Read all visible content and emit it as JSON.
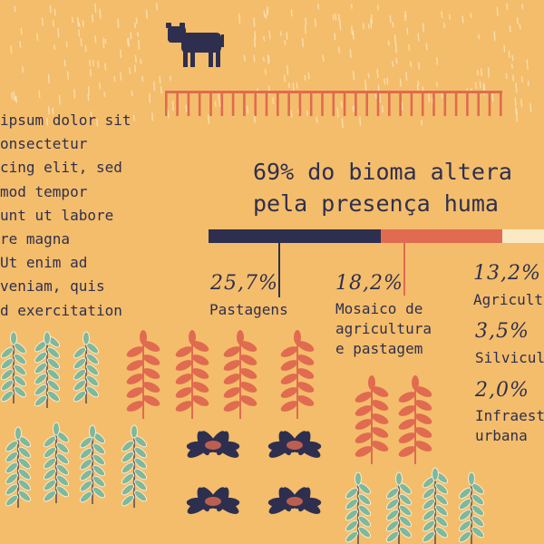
{
  "body_text": "ipsum dolor sit\nonsectetur\ncing elit, sed\nmod tempor\nunt ut labore\nre magna\nUt enim ad\nveniam, quis\nd exercitation",
  "headline": "69% do bioma altera\npela presença huma",
  "colors": {
    "background": "#f4bd6b",
    "navy": "#2e2f4f",
    "coral": "#e06b50",
    "cream": "#fbe9c5",
    "leaf_green": "#7fb89a"
  },
  "stats": [
    {
      "value": "25,7%",
      "label": "Pastagens",
      "color": "#2e2f4f"
    },
    {
      "value": "18,2%",
      "label": "Mosaico de\nagricultura\ne pastagem",
      "color": "#e06b50"
    },
    {
      "value": "13,2%",
      "label": "Agricult",
      "color": "#fbe9c5"
    },
    {
      "value": "3,5%",
      "label": "Silvicul",
      "color": ""
    },
    {
      "value": "2,0%",
      "label": "Infraest\nurbana",
      "color": ""
    }
  ],
  "icons": {
    "animal": "cow-icon",
    "fence": "fence-icon",
    "plants": [
      "green-plant-icon",
      "coral-plant-icon",
      "navy-bush-icon"
    ]
  }
}
